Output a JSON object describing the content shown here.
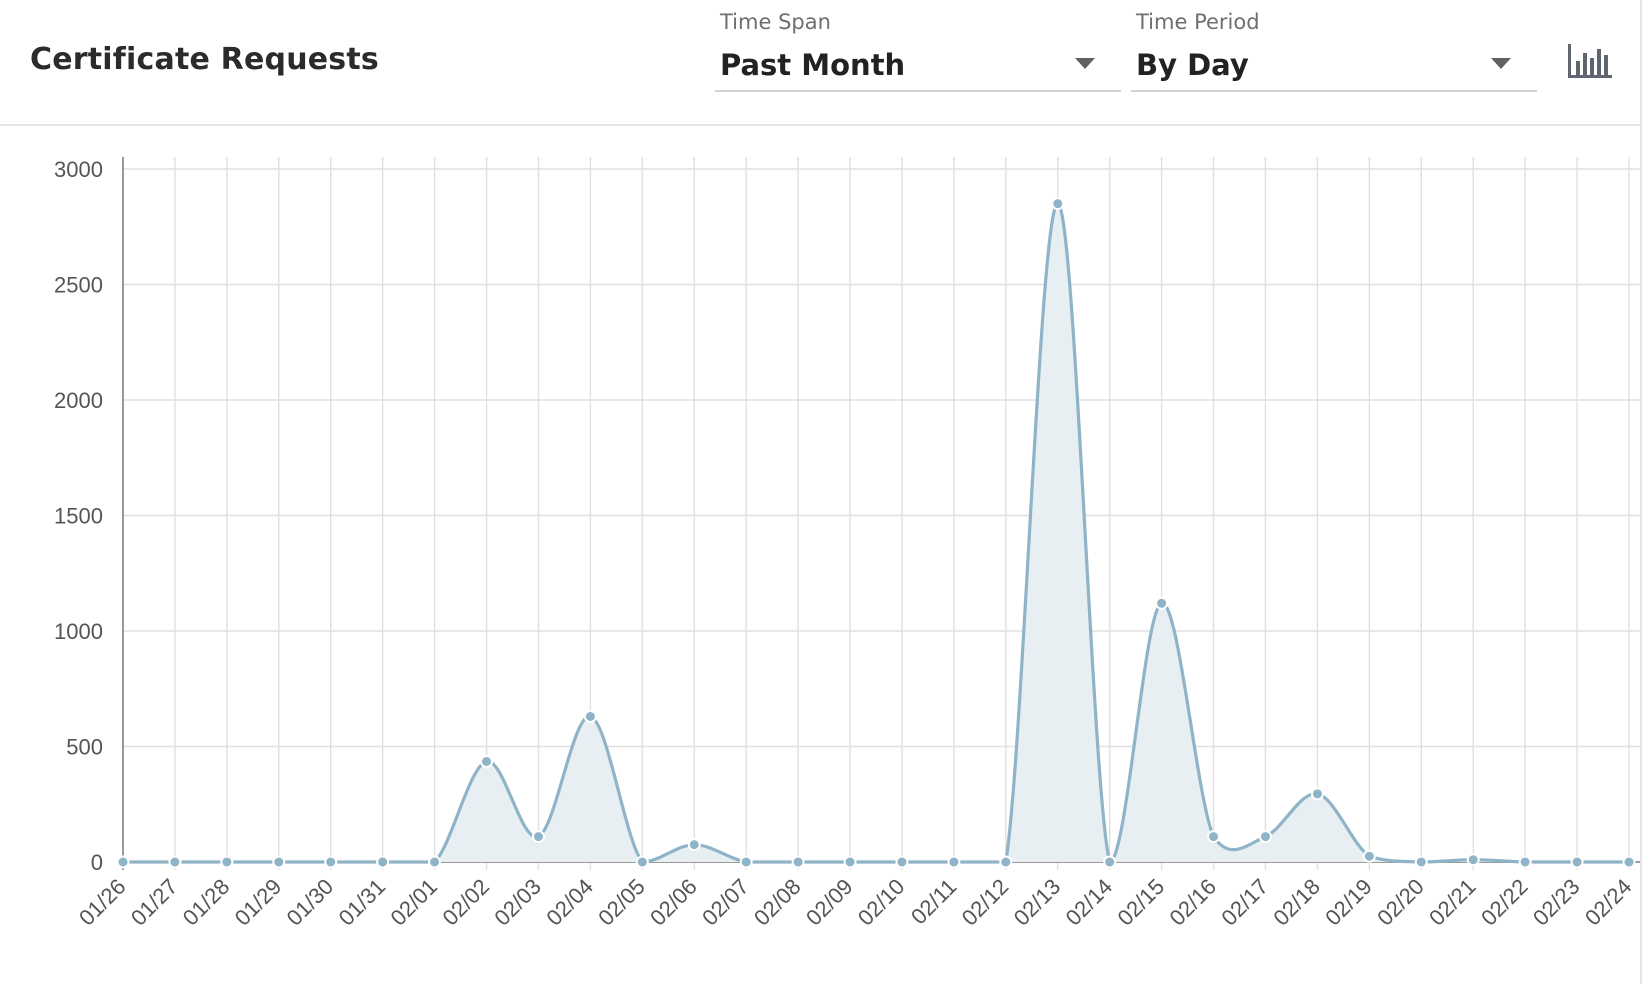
{
  "header": {
    "title": "Certificate Requests",
    "time_span": {
      "label": "Time Span",
      "value": "Past Month"
    },
    "time_period": {
      "label": "Time Period",
      "value": "By Day"
    },
    "chart_type_icon": "bar-chart-icon"
  },
  "colors": {
    "line": "#8fb3c7",
    "fill": "#e7eff3",
    "grid": "#e0e0e0",
    "axis": "#9a9a9a",
    "label": "#555555"
  },
  "chart_data": {
    "type": "area",
    "title": "",
    "xlabel": "",
    "ylabel": "",
    "ylim": [
      0,
      3000
    ],
    "yticks": [
      0,
      500,
      1000,
      1500,
      2000,
      2500,
      3000
    ],
    "grid": true,
    "categories": [
      "01/26",
      "01/27",
      "01/28",
      "01/29",
      "01/30",
      "01/31",
      "02/01",
      "02/02",
      "02/03",
      "02/04",
      "02/05",
      "02/06",
      "02/07",
      "02/08",
      "02/09",
      "02/10",
      "02/11",
      "02/12",
      "02/13",
      "02/14",
      "02/15",
      "02/16",
      "02/17",
      "02/18",
      "02/19",
      "02/20",
      "02/21",
      "02/22",
      "02/23",
      "02/24"
    ],
    "values": [
      0,
      0,
      0,
      0,
      0,
      0,
      0,
      435,
      110,
      630,
      0,
      75,
      0,
      0,
      0,
      0,
      0,
      0,
      2850,
      0,
      1120,
      110,
      110,
      295,
      25,
      0,
      10,
      0,
      0,
      0
    ]
  }
}
